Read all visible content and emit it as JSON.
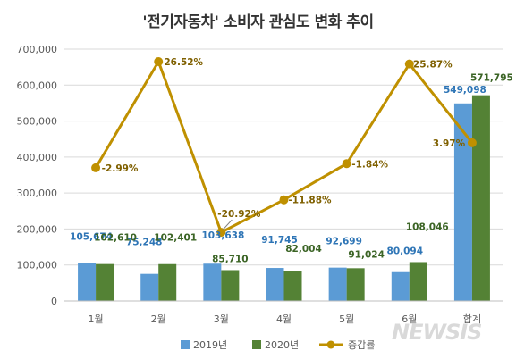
{
  "chart_data": {
    "type": "bar",
    "title": "'전기자동차' 소비자 관심도 변화 추이",
    "categories": [
      "1월",
      "2월",
      "3월",
      "4월",
      "5월",
      "6월",
      "합계"
    ],
    "series": [
      {
        "name": "2019년",
        "color": "#5b9bd5",
        "values": [
          105674,
          75248,
          103638,
          91745,
          92699,
          80094,
          549098
        ],
        "labels": [
          "105,674",
          "75,248",
          "103,638",
          "91,745",
          "92,699",
          "80,094",
          "549,098"
        ]
      },
      {
        "name": "2020년",
        "color": "#548235",
        "values": [
          102610,
          102401,
          85710,
          82004,
          91024,
          108046,
          571795
        ],
        "labels": [
          "102,610",
          "102,401",
          "85,710",
          "82,004",
          "91,024",
          "108,046",
          "571,795"
        ]
      }
    ],
    "line_series": {
      "name": "증감률",
      "type": "line",
      "color": "#bf9000",
      "values": [
        -2.99,
        26.52,
        -20.92,
        -11.88,
        -1.84,
        25.87,
        3.97
      ],
      "labels": [
        "-2.99%",
        "26.52%",
        "-20.92%",
        "-11.88%",
        "-1.84%",
        "25.87%",
        "3.97%"
      ],
      "secondary_axis_hidden": true
    },
    "ylim": [
      0,
      700000
    ],
    "yticks": [
      "0",
      "100,000",
      "200,000",
      "300,000",
      "400,000",
      "500,000",
      "600,000",
      "700,000"
    ],
    "grid": true,
    "legend_position": "bottom"
  },
  "watermark": "NEWSIS"
}
